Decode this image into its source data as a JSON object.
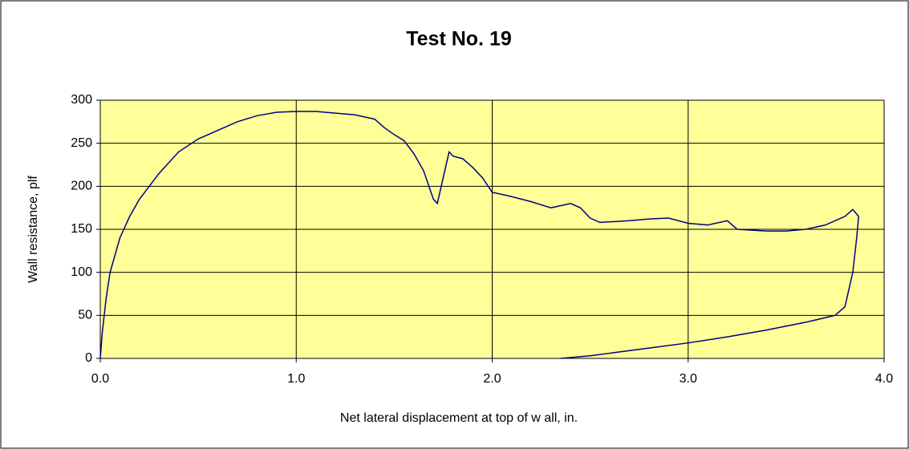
{
  "chart_data": {
    "type": "line",
    "title": "Test No. 19",
    "x_label": "Net lateral displacement at top of w all, in.",
    "y_label": "Wall resistance, plf",
    "x": [
      0,
      0.01,
      0.03,
      0.05,
      0.1,
      0.15,
      0.2,
      0.3,
      0.4,
      0.5,
      0.6,
      0.7,
      0.8,
      0.9,
      1.0,
      1.1,
      1.2,
      1.3,
      1.4,
      1.45,
      1.5,
      1.55,
      1.6,
      1.65,
      1.7,
      1.72,
      1.75,
      1.78,
      1.8,
      1.85,
      1.9,
      1.95,
      2.0,
      2.1,
      2.2,
      2.3,
      2.4,
      2.45,
      2.5,
      2.55,
      2.7,
      2.8,
      2.9,
      3.0,
      3.1,
      3.2,
      3.25,
      3.4,
      3.5,
      3.6,
      3.7,
      3.8,
      3.84,
      3.87,
      3.86,
      3.84,
      3.8,
      3.75,
      3.6,
      3.4,
      3.2,
      3.0,
      2.8,
      2.6,
      2.5,
      2.35
    ],
    "series": [
      {
        "name": "Test No. 19",
        "color": "#000080",
        "values": [
          0,
          30,
          70,
          100,
          140,
          165,
          185,
          215,
          240,
          255,
          265,
          275,
          282,
          286,
          287,
          287,
          285,
          283,
          278,
          268,
          260,
          253,
          238,
          218,
          185,
          180,
          210,
          240,
          235,
          232,
          222,
          210,
          193,
          188,
          182,
          175,
          180,
          175,
          163,
          158,
          160,
          162,
          163,
          157,
          155,
          160,
          150,
          148,
          148,
          150,
          155,
          165,
          173,
          165,
          140,
          100,
          60,
          50,
          42,
          33,
          25,
          18,
          12,
          6,
          3,
          0
        ]
      }
    ],
    "xlim": [
      0,
      4
    ],
    "xticks": [
      {
        "value": 0,
        "label": "0.0"
      },
      {
        "value": 1,
        "label": "1.0"
      },
      {
        "value": 2,
        "label": "2.0"
      },
      {
        "value": 3,
        "label": "3.0"
      },
      {
        "value": 4,
        "label": "4.0"
      }
    ],
    "ylim": [
      0,
      300
    ],
    "yticks": [
      0,
      50,
      100,
      150,
      200,
      250,
      300
    ],
    "grid": true,
    "background": "#ffff99"
  }
}
